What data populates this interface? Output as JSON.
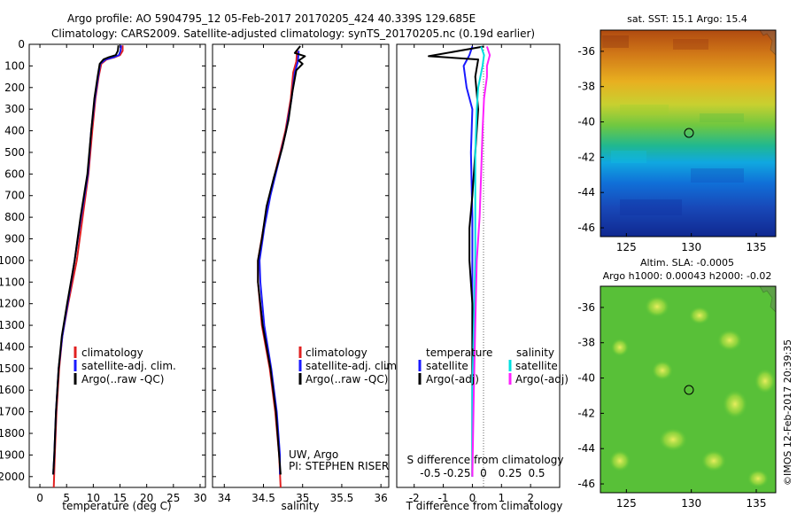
{
  "header": {
    "line1": "Argo profile: AO 5904795_12 05-Feb-2017 20170205_424 40.339S 129.685E",
    "line2": "Climatology: CARS2009. Satellite-adjusted climatology: synTS_20170205.nc (0.19d earlier)"
  },
  "colors": {
    "climatology": "#e02020",
    "satellite": "#1a1aff",
    "argo": "#000000",
    "sal_satellite": "#00e0e0",
    "sal_argo": "#ff20ff"
  },
  "chart_data": [
    {
      "type": "line",
      "id": "temperature",
      "xlabel": "temperature (deg C)",
      "ylabel": "",
      "xlim": [
        -2,
        31
      ],
      "ylim": [
        2050,
        0
      ],
      "xticks": [
        0,
        5,
        10,
        15,
        20,
        25,
        30
      ],
      "xtick_labels": [
        "0",
        "5",
        "10",
        "15",
        "20",
        "25",
        "30"
      ],
      "yticks": [
        0,
        100,
        200,
        300,
        400,
        500,
        600,
        700,
        800,
        900,
        1000,
        1100,
        1200,
        1300,
        1400,
        1500,
        1600,
        1700,
        1800,
        1900,
        2000
      ],
      "ytick_labels": [
        "0",
        "100",
        "200",
        "300",
        "400",
        "500",
        "600",
        "700",
        "800",
        "900",
        "1000",
        "1100",
        "1200",
        "1300",
        "1400",
        "1500",
        "1600",
        "1700",
        "1800",
        "1900",
        "2000"
      ],
      "legend": [
        "climatology",
        "satellite-adj. clim.",
        "Argo(..raw -QC)"
      ],
      "series": [
        {
          "name": "climatology",
          "color": "#e02020",
          "points": [
            [
              15.5,
              5
            ],
            [
              15.5,
              30
            ],
            [
              15,
              50
            ],
            [
              14,
              60
            ],
            [
              12.5,
              70
            ],
            [
              11.5,
              90
            ],
            [
              11,
              150
            ],
            [
              10.4,
              250
            ],
            [
              9.8,
              400
            ],
            [
              9.1,
              600
            ],
            [
              8,
              800
            ],
            [
              6.9,
              1000
            ],
            [
              5.3,
              1200
            ],
            [
              4.2,
              1350
            ],
            [
              3.6,
              1500
            ],
            [
              3.1,
              1700
            ],
            [
              2.8,
              1900
            ],
            [
              2.6,
              2050
            ]
          ]
        },
        {
          "name": "satellite-adj. clim.",
          "color": "#1a1aff",
          "points": [
            [
              15.2,
              5
            ],
            [
              15.1,
              30
            ],
            [
              14.8,
              50
            ],
            [
              13.8,
              60
            ],
            [
              12.3,
              70
            ],
            [
              11.3,
              90
            ],
            [
              10.9,
              150
            ],
            [
              10.3,
              250
            ],
            [
              9.6,
              400
            ],
            [
              9,
              600
            ],
            [
              7.7,
              800
            ],
            [
              6.5,
              1000
            ],
            [
              5.2,
              1200
            ],
            [
              4.2,
              1350
            ],
            [
              3.5,
              1500
            ],
            [
              3,
              1700
            ],
            [
              2.7,
              1900
            ],
            [
              2.5,
              1990
            ]
          ]
        },
        {
          "name": "Argo(..raw -QC)",
          "color": "#000000",
          "points": [
            [
              14.7,
              5
            ],
            [
              14.6,
              30
            ],
            [
              14.2,
              50
            ],
            [
              12.9,
              60
            ],
            [
              11.9,
              70
            ],
            [
              11.2,
              90
            ],
            [
              10.8,
              150
            ],
            [
              10.2,
              250
            ],
            [
              9.6,
              400
            ],
            [
              8.9,
              600
            ],
            [
              7.6,
              800
            ],
            [
              6.5,
              1000
            ],
            [
              5.1,
              1200
            ],
            [
              4.1,
              1350
            ],
            [
              3.5,
              1500
            ],
            [
              3,
              1700
            ],
            [
              2.7,
              1900
            ],
            [
              2.5,
              1990
            ]
          ]
        }
      ]
    },
    {
      "type": "line",
      "id": "salinity",
      "xlabel": "salinity",
      "ylabel": "",
      "xlim": [
        33.85,
        36.1
      ],
      "ylim": [
        2050,
        0
      ],
      "xticks": [
        34,
        34.5,
        35,
        35.5,
        36
      ],
      "xtick_labels": [
        "34",
        "34.5",
        "35",
        "35.5",
        "36"
      ],
      "legend": [
        "climatology",
        "satellite-adj. clim.",
        "Argo(..raw -QC)"
      ],
      "annotations": [
        "UW, Argo",
        "PI: STEPHEN RISER"
      ],
      "series": [
        {
          "name": "climatology",
          "color": "#e02020",
          "points": [
            [
              34.93,
              30
            ],
            [
              34.92,
              80
            ],
            [
              34.88,
              130
            ],
            [
              34.85,
              250
            ],
            [
              34.78,
              400
            ],
            [
              34.68,
              550
            ],
            [
              34.58,
              700
            ],
            [
              34.5,
              850
            ],
            [
              34.43,
              1000
            ],
            [
              34.43,
              1100
            ],
            [
              34.48,
              1300
            ],
            [
              34.58,
              1500
            ],
            [
              34.65,
              1700
            ],
            [
              34.7,
              1900
            ],
            [
              34.72,
              2050
            ]
          ]
        },
        {
          "name": "satellite-adj. clim.",
          "color": "#1a1aff",
          "points": [
            [
              34.95,
              30
            ],
            [
              34.94,
              80
            ],
            [
              34.9,
              130
            ],
            [
              34.86,
              250
            ],
            [
              34.79,
              400
            ],
            [
              34.69,
              550
            ],
            [
              34.59,
              700
            ],
            [
              34.51,
              850
            ],
            [
              34.45,
              1000
            ],
            [
              34.46,
              1100
            ],
            [
              34.51,
              1300
            ],
            [
              34.6,
              1500
            ],
            [
              34.67,
              1700
            ],
            [
              34.71,
              1900
            ],
            [
              34.71,
              1990
            ]
          ]
        },
        {
          "name": "Argo(..raw -QC)",
          "color": "#000000",
          "points": [
            [
              34.97,
              8
            ],
            [
              34.9,
              40
            ],
            [
              35.03,
              55
            ],
            [
              34.95,
              75
            ],
            [
              35,
              90
            ],
            [
              34.92,
              120
            ],
            [
              34.87,
              220
            ],
            [
              34.82,
              350
            ],
            [
              34.74,
              480
            ],
            [
              34.63,
              620
            ],
            [
              34.54,
              750
            ],
            [
              34.48,
              900
            ],
            [
              34.43,
              1000
            ],
            [
              34.43,
              1100
            ],
            [
              34.49,
              1300
            ],
            [
              34.59,
              1500
            ],
            [
              34.66,
              1700
            ],
            [
              34.7,
              1900
            ],
            [
              34.72,
              1990
            ]
          ]
        }
      ]
    },
    {
      "type": "line",
      "id": "difference",
      "xlabel": "T difference from climatology",
      "top_label": "S difference from climatology",
      "xlim": [
        -2.6,
        3
      ],
      "ylim": [
        2050,
        0
      ],
      "xticks": [
        -2,
        -1,
        0,
        1,
        2
      ],
      "xtick_labels": [
        "-2",
        "-1",
        "0",
        "1",
        "2"
      ],
      "s_xticks": [
        -0.5,
        -0.25,
        0,
        0.25,
        0.5
      ],
      "s_xtick_labels": [
        "-0.5",
        "-0.25",
        "0",
        "0.25",
        "0.5"
      ],
      "legend_titles": [
        "temperature",
        "salinity"
      ],
      "legend": [
        "satellite",
        "Argo(-adj)",
        "satellite",
        "Argo(-adj)"
      ],
      "series": [
        {
          "name": "T satellite",
          "color": "#1a1aff",
          "points": [
            [
              0,
              10
            ],
            [
              -0.1,
              50
            ],
            [
              -0.3,
              100
            ],
            [
              -0.2,
              200
            ],
            [
              0,
              300
            ],
            [
              -0.05,
              500
            ],
            [
              0,
              800
            ],
            [
              0,
              1200
            ],
            [
              0,
              2000
            ]
          ]
        },
        {
          "name": "T Argo(-adj)",
          "color": "#000000",
          "points": [
            [
              0.4,
              10
            ],
            [
              -1.5,
              55
            ],
            [
              0.2,
              70
            ],
            [
              0.1,
              150
            ],
            [
              0.2,
              300
            ],
            [
              0.1,
              500
            ],
            [
              0,
              700
            ],
            [
              -0.1,
              850
            ],
            [
              -0.1,
              1000
            ],
            [
              0,
              1200
            ],
            [
              0,
              1600
            ],
            [
              0,
              2000
            ]
          ]
        },
        {
          "name": "S satellite",
          "color": "#00e0e0",
          "points": [
            [
              0.3,
              10
            ],
            [
              0.4,
              50
            ],
            [
              0.35,
              100
            ],
            [
              0.2,
              200
            ],
            [
              0.15,
              300
            ],
            [
              0.1,
              500
            ],
            [
              0.1,
              800
            ],
            [
              0.1,
              1000
            ],
            [
              0.05,
              1300
            ],
            [
              0,
              1600
            ],
            [
              0,
              2000
            ]
          ]
        },
        {
          "name": "S Argo(-adj)",
          "color": "#ff20ff",
          "points": [
            [
              0.5,
              10
            ],
            [
              0.6,
              50
            ],
            [
              0.5,
              100
            ],
            [
              0.5,
              150
            ],
            [
              0.4,
              250
            ],
            [
              0.35,
              400
            ],
            [
              0.3,
              600
            ],
            [
              0.25,
              800
            ],
            [
              0.15,
              1000
            ],
            [
              0.1,
              1300
            ],
            [
              0.05,
              1600
            ],
            [
              0,
              2000
            ]
          ]
        }
      ]
    },
    {
      "type": "heatmap",
      "id": "sst_map",
      "title": "sat. SST: 15.1  Argo: 15.4",
      "xlim": [
        123,
        136.5
      ],
      "ylim": [
        -46.5,
        -34.8
      ],
      "xticks": [
        125,
        130,
        135
      ],
      "yticks": [
        -36,
        -38,
        -40,
        -42,
        -44,
        -46
      ],
      "marker": [
        129.685,
        -40.339
      ]
    },
    {
      "type": "heatmap",
      "id": "sla_map",
      "title": "Altim. SLA: -0.0005",
      "subtitle": "Argo h1000: 0.00043  h2000: -0.02",
      "xlim": [
        123,
        136.5
      ],
      "ylim": [
        -46.5,
        -34.8
      ],
      "xticks": [
        125,
        130,
        135
      ],
      "yticks": [
        -36,
        -38,
        -40,
        -42,
        -44,
        -46
      ],
      "marker": [
        129.685,
        -40.339
      ]
    }
  ],
  "footer": {
    "credit": "©IMOS 12-Feb-2017 20:39:35"
  }
}
